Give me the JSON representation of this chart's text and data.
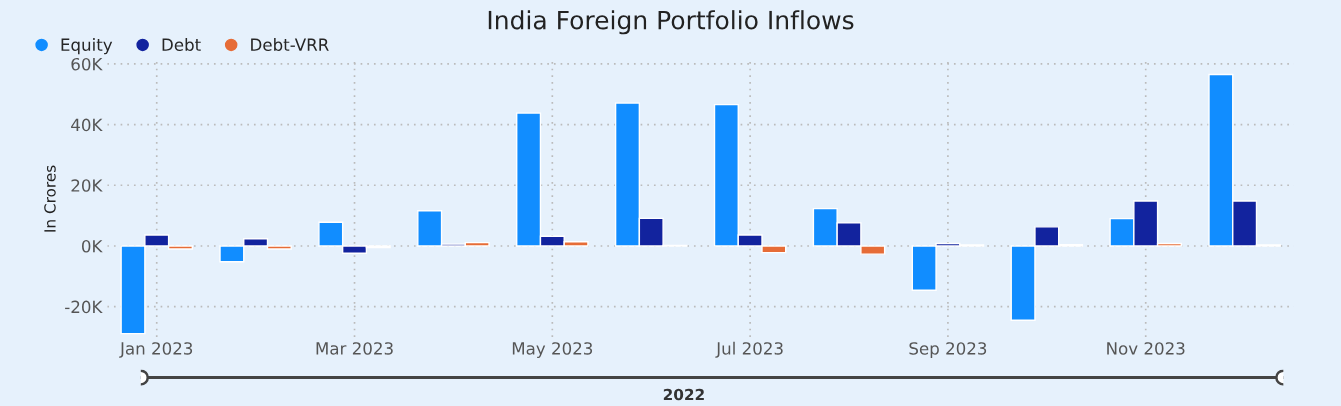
{
  "chart_data": {
    "type": "bar",
    "title": "India Foreign Portfolio Inflows",
    "ylabel": "In Crores",
    "categories": [
      "Jan 2023",
      null,
      "Mar 2023",
      null,
      "May 2023",
      null,
      "Jul 2023",
      null,
      "Sep 2023",
      null,
      "Nov 2023",
      null
    ],
    "series": [
      {
        "name": "Equity",
        "color": "#118dff",
        "values": [
          -28900,
          -5200,
          7800,
          11600,
          43800,
          47100,
          46600,
          12300,
          -14600,
          -24500,
          9000,
          56500
        ]
      },
      {
        "name": "Debt",
        "color": "#12239e",
        "values": [
          3600,
          2400,
          -2400,
          600,
          3200,
          9100,
          3600,
          7600,
          800,
          6300,
          14800,
          14800
        ]
      },
      {
        "name": "Debt-VRR",
        "color": "#e66c37",
        "values": [
          -1000,
          -1000,
          -500,
          1100,
          1400,
          200,
          -2200,
          -2700,
          300,
          400,
          800,
          300
        ]
      }
    ],
    "ylim": [
      -30000,
      61000
    ],
    "yticks": [
      {
        "value": -20000,
        "label": "-20K"
      },
      {
        "value": 0,
        "label": "0K"
      },
      {
        "value": 20000,
        "label": "20K"
      },
      {
        "value": 40000,
        "label": "40K"
      },
      {
        "value": 60000,
        "label": "60K"
      }
    ],
    "annotations": [
      "2022"
    ],
    "grid": true,
    "legend": "top left"
  }
}
